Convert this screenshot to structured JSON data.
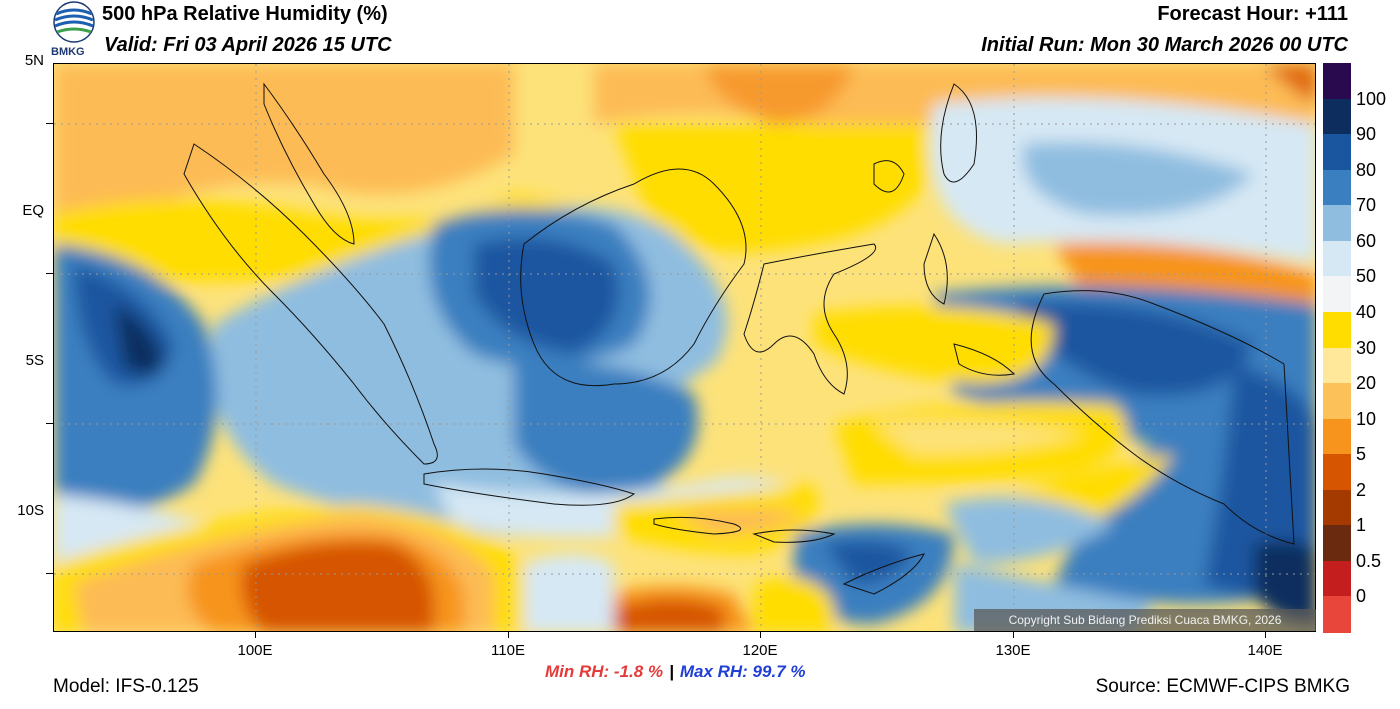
{
  "header": {
    "title": "500 hPa Relative Humidity (%)",
    "valid": "Valid: Fri 03 April 2026 15 UTC",
    "forecast_hour": "Forecast Hour: +111",
    "initial_run": "Initial Run: Mon 30 March 2026 00 UTC",
    "logo_text": "BMKG"
  },
  "map": {
    "lat_labels": [
      "5N",
      "EQ",
      "5S",
      "10S"
    ],
    "lon_labels": [
      "100E",
      "110E",
      "120E",
      "130E",
      "140E"
    ],
    "lon_min": 92,
    "lon_max": 142,
    "lat_min": -12,
    "lat_max": 7,
    "copyright": "Copyright Sub Bidang Prediksi Cuaca BMKG, 2026"
  },
  "stats": {
    "min_rh": "Min RH:  -1.8 %",
    "separator": "|",
    "max_rh": "Max RH:  99.7 %"
  },
  "footer": {
    "model": "Model: IFS-0.125",
    "source": "Source: ECMWF-CIPS BMKG"
  },
  "colorbar": {
    "labels": [
      "100",
      "90",
      "80",
      "70",
      "60",
      "50",
      "40",
      "30",
      "20",
      "10",
      "5",
      "2",
      "1",
      "0.5",
      "0"
    ],
    "colors": [
      "#2a0a4e",
      "#0d2d5e",
      "#1a56a0",
      "#3a7fc0",
      "#8fbde0",
      "#d6e8f4",
      "#f2f4f6",
      "#ffdd00",
      "#ffe89a",
      "#fdc15a",
      "#f7941d",
      "#d65500",
      "#a53a00",
      "#6a2a10",
      "#c41e1e",
      "#e8463a"
    ]
  },
  "colors": {
    "min_rh": "#e53a3a",
    "max_rh": "#1f3fd6"
  }
}
